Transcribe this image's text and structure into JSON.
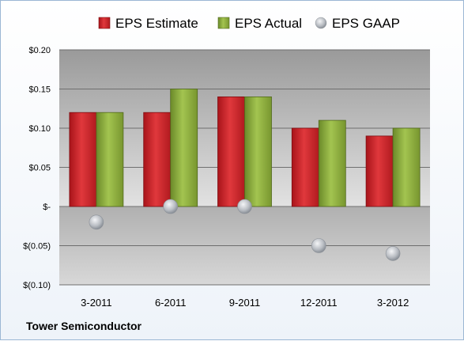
{
  "chart_data": {
    "type": "bar",
    "categories": [
      "3-2011",
      "6-2011",
      "9-2011",
      "12-2011",
      "3-2012"
    ],
    "series": [
      {
        "name": "EPS Estimate",
        "kind": "bar",
        "color": "#cc1f24",
        "values": [
          0.12,
          0.12,
          0.14,
          0.1,
          0.09
        ]
      },
      {
        "name": "EPS Actual",
        "kind": "bar",
        "color": "#8aab3c",
        "values": [
          0.12,
          0.15,
          0.14,
          0.11,
          0.1
        ]
      },
      {
        "name": "EPS GAAP",
        "kind": "marker",
        "color": "#b8bcc2",
        "values": [
          -0.02,
          0.0,
          0.0,
          -0.05,
          -0.06
        ]
      }
    ],
    "ylim": [
      -0.1,
      0.2
    ],
    "yticks": [
      0.2,
      0.15,
      0.1,
      0.05,
      0.0,
      -0.05,
      -0.1
    ],
    "ytick_labels": [
      "$0.20",
      "$0.15",
      "$0.10",
      "$0.05",
      "$-",
      "$(0.05)",
      "$(0.10)"
    ],
    "grid": true,
    "legend_position": "top"
  },
  "footer": {
    "company": "Tower Semiconductor"
  }
}
